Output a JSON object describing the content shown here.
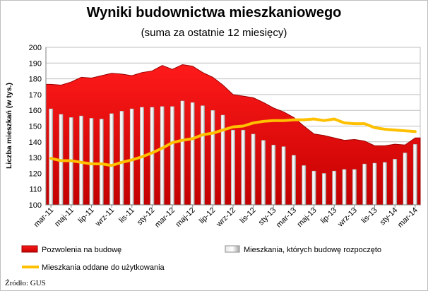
{
  "chart_data": {
    "type": "area",
    "title": "Wyniki budownictwa mieszkaniowego",
    "subtitle": "(suma za ostatnie 12 miesięcy)",
    "xlabel": "",
    "ylabel": "Liczba mieszkań (w tys.)",
    "ylim": [
      100,
      200
    ],
    "yticks": [
      100,
      110,
      120,
      130,
      140,
      150,
      160,
      170,
      180,
      190,
      200
    ],
    "grid": true,
    "legend_position": "bottom",
    "categories": [
      "mar-11",
      "kwi-11",
      "maj-11",
      "cze-11",
      "lip-11",
      "sie-11",
      "wrz-11",
      "paź-11",
      "lis-11",
      "gru-11",
      "sty-12",
      "lut-12",
      "mar-12",
      "kwi-12",
      "maj-12",
      "cze-12",
      "lip-12",
      "sie-12",
      "wrz-12",
      "paź-12",
      "lis-12",
      "gru-12",
      "sty-13",
      "lut-13",
      "mar-13",
      "kwi-13",
      "maj-13",
      "cze-13",
      "lip-13",
      "sie-13",
      "wrz-13",
      "paź-13",
      "lis-13",
      "gru-13",
      "sty-14",
      "lut-14",
      "mar-14"
    ],
    "x_tick_labels": [
      "mar-11",
      "maj-11",
      "lip-11",
      "wrz-11",
      "lis-11",
      "sty-12",
      "mar-12",
      "maj-12",
      "lip-12",
      "wrz-12",
      "lis-12",
      "sty-13",
      "mar-13",
      "maj-13",
      "lip-13",
      "wrz-13",
      "lis-13",
      "sty-14",
      "mar-14"
    ],
    "series": [
      {
        "name": "Pozwolenia na budowę",
        "kind": "area",
        "color": "#ff0000",
        "values": [
          176.5,
          176,
          178,
          181,
          180.5,
          182,
          183.5,
          183,
          182,
          184,
          185,
          188.5,
          186,
          189,
          188,
          184,
          181,
          176,
          170,
          169,
          168,
          165,
          161.5,
          159,
          155.5,
          150,
          145,
          144,
          142.5,
          141,
          141.5,
          140.5,
          137.5,
          137.5,
          138.5,
          138,
          142.5
        ]
      },
      {
        "name": "Mieszkania, których budowę rozpoczęto",
        "kind": "bar",
        "color": "#bfbfbf",
        "values": [
          161,
          157.5,
          155.5,
          156.5,
          155,
          154.5,
          158,
          159.5,
          161,
          162,
          162,
          162.5,
          162.5,
          166,
          165,
          163,
          160,
          157,
          147.5,
          147.5,
          145,
          141,
          138,
          137,
          131.5,
          125,
          121.5,
          120,
          121.5,
          122.5,
          122.5,
          126,
          126.5,
          127,
          129,
          133,
          138.5
        ]
      },
      {
        "name": "Mieszkania oddane do użytkowania",
        "kind": "line",
        "color": "#ffc000",
        "values": [
          129.5,
          128,
          128,
          127,
          126,
          126,
          125,
          127,
          128.5,
          130.5,
          133,
          136,
          139.5,
          141,
          142,
          144.5,
          145.5,
          147.5,
          149.5,
          150,
          152,
          153,
          153.5,
          153.5,
          154,
          154,
          154.5,
          153.5,
          154.5,
          152,
          151.5,
          151.5,
          149,
          148,
          147.5,
          147,
          146.5
        ]
      }
    ]
  },
  "source": "Źródło: GUS"
}
